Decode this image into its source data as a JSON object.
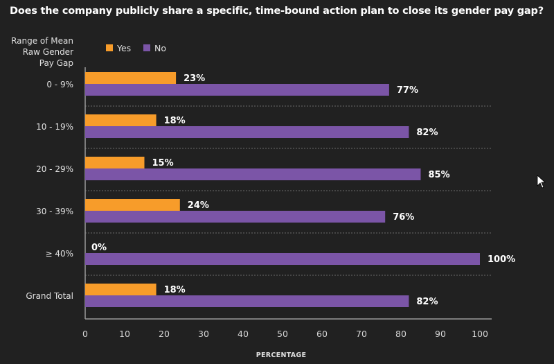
{
  "chart_data": {
    "type": "bar",
    "orientation": "horizontal",
    "title": "Does the company publicly share a specific, time-bound action plan to close its gender pay gap?",
    "ylabel": "Range of Mean Raw Gender Pay Gap",
    "ylabel_lines": [
      "Range of Mean",
      "Raw Gender",
      "Pay Gap"
    ],
    "xlabel": "PERCENTAGE",
    "xlim": [
      0,
      100
    ],
    "xticks": [
      0,
      10,
      20,
      30,
      40,
      50,
      60,
      70,
      80,
      90,
      100
    ],
    "categories": [
      "0 - 9%",
      "10 - 19%",
      "20 - 29%",
      "30 - 39%",
      "≥ 40%",
      "Grand Total"
    ],
    "series": [
      {
        "name": "Yes",
        "color": "#f79c2a",
        "values": [
          23,
          18,
          15,
          24,
          0,
          18
        ],
        "labels": [
          "23%",
          "18%",
          "15%",
          "24%",
          "0%",
          "18%"
        ]
      },
      {
        "name": "No",
        "color": "#7b55a7",
        "values": [
          77,
          82,
          85,
          76,
          100,
          82
        ],
        "labels": [
          "77%",
          "82%",
          "85%",
          "76%",
          "100%",
          "82%"
        ]
      }
    ],
    "legend_position": "top-left",
    "grid": "dashed row separators"
  }
}
